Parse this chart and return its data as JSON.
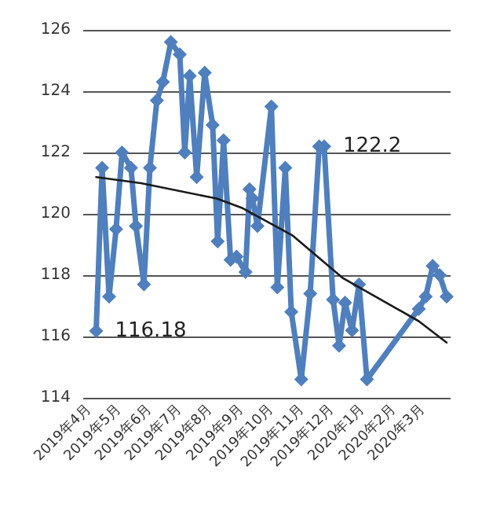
{
  "chart_data": {
    "type": "line",
    "marker": "diamond",
    "grid": "y",
    "xlim": [
      "2019-03-26",
      "2020-03-29"
    ],
    "xticks": [
      {
        "value": "2019-04-01",
        "label": "2019年4月"
      },
      {
        "value": "2019-05-01",
        "label": "2019年5月"
      },
      {
        "value": "2019-06-01",
        "label": "2019年6月"
      },
      {
        "value": "2019-07-01",
        "label": "2019年7月"
      },
      {
        "value": "2019-08-01",
        "label": "2019年8月"
      },
      {
        "value": "2019-09-01",
        "label": "2019年9月"
      },
      {
        "value": "2019-10-01",
        "label": "2019年10月"
      },
      {
        "value": "2019-11-01",
        "label": "2019年11月"
      },
      {
        "value": "2019-12-01",
        "label": "2019年12月"
      },
      {
        "value": "2020-01-01",
        "label": "2020年1月"
      },
      {
        "value": "2020-02-01",
        "label": "2020年2月"
      },
      {
        "value": "2020-03-01",
        "label": "2020年3月"
      }
    ],
    "ylim": [
      114,
      126
    ],
    "yticks": [
      114,
      116,
      118,
      120,
      122,
      124,
      126
    ],
    "series": [
      {
        "color": "#4f7fbd",
        "x": [
          "2019-04-08",
          "2019-04-14",
          "2019-04-21",
          "2019-04-28",
          "2019-05-04",
          "2019-05-13",
          "2019-05-18",
          "2019-05-26",
          "2019-06-01",
          "2019-06-08",
          "2019-06-14",
          "2019-06-22",
          "2019-07-01",
          "2019-07-06",
          "2019-07-11",
          "2019-07-18",
          "2019-07-26",
          "2019-08-03",
          "2019-08-08",
          "2019-08-14",
          "2019-08-21",
          "2019-08-27",
          "2019-09-05",
          "2019-09-09",
          "2019-09-12",
          "2019-09-17",
          "2019-10-01",
          "2019-10-07",
          "2019-10-15",
          "2019-10-21",
          "2019-10-31",
          "2019-11-09",
          "2019-11-18",
          "2019-11-23",
          "2019-12-02",
          "2019-12-08",
          "2019-12-14",
          "2019-12-21",
          "2019-12-28",
          "2020-01-05",
          "2020-02-26",
          "2020-03-04",
          "2020-03-11",
          "2020-03-18",
          "2020-03-25"
        ],
        "values": [
          116.18,
          121.5,
          117.3,
          119.5,
          122.0,
          121.5,
          119.6,
          117.7,
          121.5,
          123.7,
          124.3,
          125.6,
          125.2,
          122.0,
          124.5,
          121.2,
          124.6,
          122.9,
          119.1,
          122.4,
          118.5,
          118.6,
          118.1,
          120.8,
          120.5,
          119.6,
          123.5,
          117.6,
          121.5,
          116.8,
          114.6,
          117.4,
          122.2,
          122.2,
          117.2,
          115.7,
          117.1,
          116.2,
          117.7,
          114.6,
          116.9,
          117.3,
          118.3,
          118.0,
          117.3
        ]
      },
      {
        "type": "line",
        "marker": "none",
        "color": "#1a1a1a",
        "x": [
          "2019-04-08",
          "2019-05-23",
          "2019-08-07",
          "2019-09-01",
          "2019-10-22",
          "2019-12-12",
          "2020-02-26",
          "2020-03-25"
        ],
        "values": [
          121.2,
          121.0,
          120.5,
          120.2,
          119.3,
          117.9,
          116.5,
          115.8
        ]
      }
    ],
    "annotations": [
      {
        "text": "116.18",
        "x": "2019-04-08",
        "y": 116.18
      },
      {
        "text": "122.2",
        "x": "2019-11-23",
        "y": 122.2
      }
    ]
  }
}
